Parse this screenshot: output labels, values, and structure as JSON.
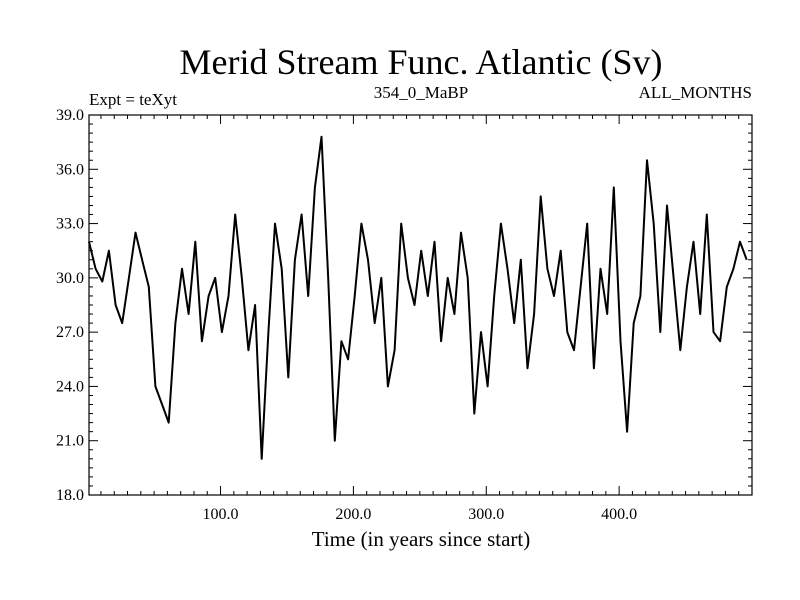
{
  "chart_data": {
    "type": "line",
    "title": "Merid Stream Func. Atlantic (Sv)",
    "subtitle_left": "Expt = teXyt",
    "subtitle_center": "354_0_MaBP",
    "subtitle_right": "ALL_MONTHS",
    "xlabel": "Time (in years since start)",
    "ylabel": "",
    "xlim": [
      1,
      500
    ],
    "ylim": [
      18.0,
      39.0
    ],
    "x_ticks": [
      100,
      200,
      300,
      400
    ],
    "x_tick_labels": [
      "100.0",
      "200.0",
      "300.0",
      "400.0"
    ],
    "y_ticks": [
      18,
      21,
      24,
      27,
      30,
      33,
      36,
      39
    ],
    "y_tick_labels": [
      "18.0",
      "21.0",
      "24.0",
      "27.0",
      "30.0",
      "33.0",
      "36.0",
      "39.0"
    ],
    "grid": false,
    "line_color": "#000000",
    "series": [
      {
        "x_start": 1,
        "x_step": 5,
        "values": [
          32.0,
          30.5,
          29.8,
          31.5,
          28.5,
          27.5,
          30.0,
          32.5,
          31.0,
          29.5,
          24.0,
          23.0,
          22.0,
          27.5,
          30.5,
          28.0,
          32.0,
          26.5,
          29.0,
          30.0,
          27.0,
          29.0,
          33.5,
          30.0,
          26.0,
          28.5,
          20.0,
          27.0,
          33.0,
          30.5,
          24.5,
          31.0,
          33.5,
          29.0,
          35.0,
          37.8,
          30.0,
          21.0,
          26.5,
          25.5,
          29.0,
          33.0,
          31.0,
          27.5,
          30.0,
          24.0,
          26.0,
          33.0,
          30.0,
          28.5,
          31.5,
          29.0,
          32.0,
          26.5,
          30.0,
          28.0,
          32.5,
          30.0,
          22.5,
          27.0,
          24.0,
          29.0,
          33.0,
          30.5,
          27.5,
          31.0,
          25.0,
          28.0,
          34.5,
          30.5,
          29.0,
          31.5,
          27.0,
          26.0,
          29.5,
          33.0,
          25.0,
          30.5,
          28.0,
          35.0,
          26.5,
          21.5,
          27.5,
          29.0,
          36.5,
          33.0,
          27.0,
          34.0,
          30.0,
          26.0,
          29.5,
          32.0,
          28.0,
          33.5,
          27.0,
          26.5,
          29.5,
          30.5,
          32.0,
          31.0
        ]
      }
    ]
  }
}
